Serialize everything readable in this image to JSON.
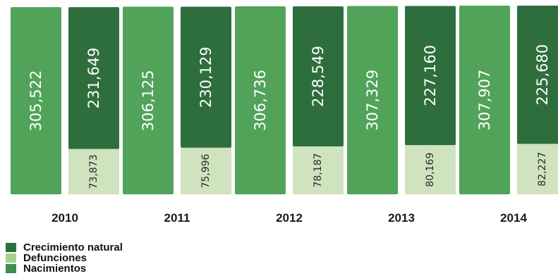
{
  "chart_data": {
    "type": "bar",
    "categories": [
      "2010",
      "2011",
      "2012",
      "2013",
      "2014"
    ],
    "series": [
      {
        "name": "Nacimientos",
        "color": "#52a35a",
        "values": [
          305522,
          306125,
          306736,
          307329,
          307907
        ],
        "labels": [
          "305,522",
          "306,125",
          "306,736",
          "307,329",
          "307,907"
        ]
      },
      {
        "name": "Crecimiento natural",
        "color": "#2e6e3c",
        "values": [
          231649,
          230129,
          228549,
          227160,
          225680
        ],
        "labels": [
          "231,649",
          "230,129",
          "228,549",
          "227,160",
          "225,680"
        ]
      },
      {
        "name": "Defunciones",
        "color": "#cfe3bf",
        "values": [
          73873,
          75996,
          78187,
          80169,
          82227
        ],
        "labels": [
          "73,873",
          "75,996",
          "78,187",
          "80,169",
          "82,227"
        ]
      }
    ],
    "stacked_pair": "Crecimiento natural + Defunciones = Nacimientos",
    "ylim": [
      0,
      307907
    ]
  },
  "legend": {
    "items": [
      {
        "label": "Crecimiento natural",
        "color": "#2e6e3c"
      },
      {
        "label": "Defunciones",
        "color": "#a7d18e"
      },
      {
        "label": "Nacimientos",
        "color": "#3f8f4c"
      }
    ]
  }
}
